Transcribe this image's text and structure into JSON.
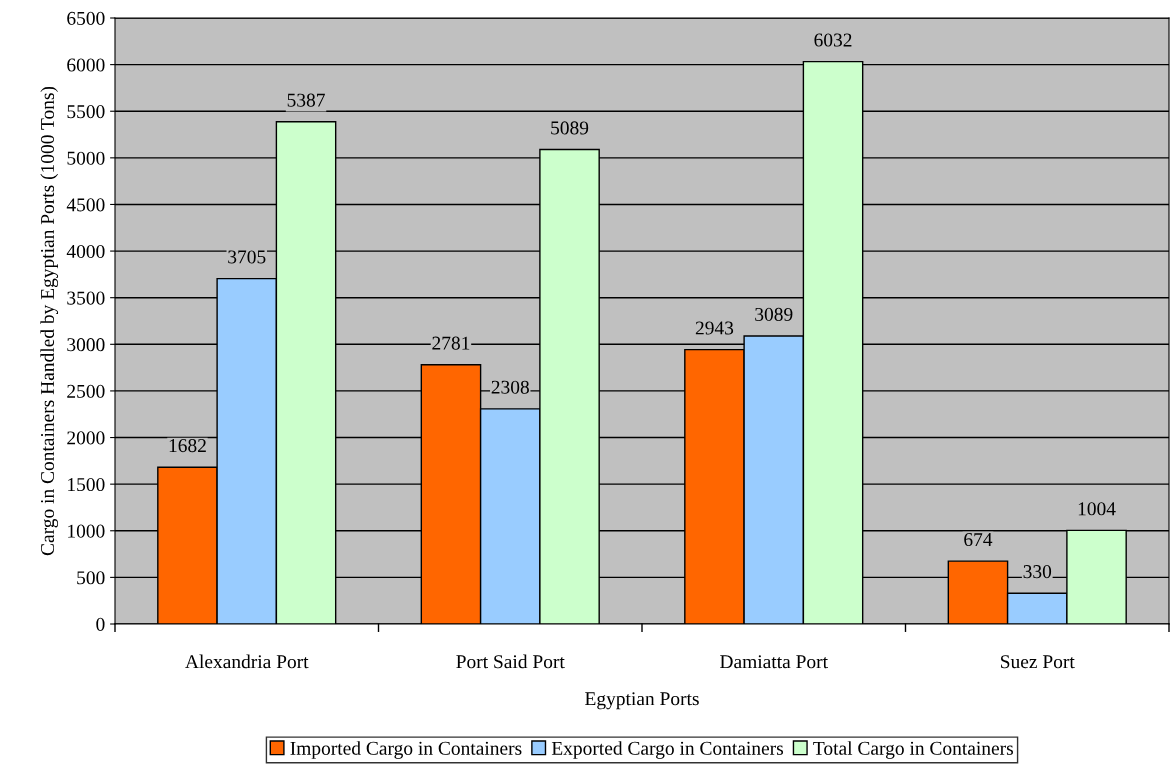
{
  "chart_data": {
    "type": "bar",
    "xlabel": "Egyptian Ports",
    "ylabel": "Cargo in Containers Handled by Egyptian Ports (1000 Tons)",
    "categories": [
      "Alexandria Port",
      "Port Said Port",
      "Damiatta Port",
      "Suez Port"
    ],
    "series": [
      {
        "name": "Imported Cargo in Containers",
        "color": "#ff6600",
        "values": [
          1682,
          2781,
          2943,
          674
        ]
      },
      {
        "name": "Exported Cargo in Containers",
        "color": "#99ccff",
        "values": [
          3705,
          2308,
          3089,
          330
        ]
      },
      {
        "name": "Total Cargo in Containers",
        "color": "#ccffcc",
        "values": [
          5387,
          5089,
          6032,
          1004
        ]
      }
    ],
    "ylim": [
      0,
      6500
    ],
    "yticks": [
      0,
      500,
      1000,
      1500,
      2000,
      2500,
      3000,
      3500,
      4000,
      4500,
      5000,
      5500,
      6000,
      6500
    ],
    "grid": "y",
    "legend": "bottom",
    "data_labels": true
  }
}
